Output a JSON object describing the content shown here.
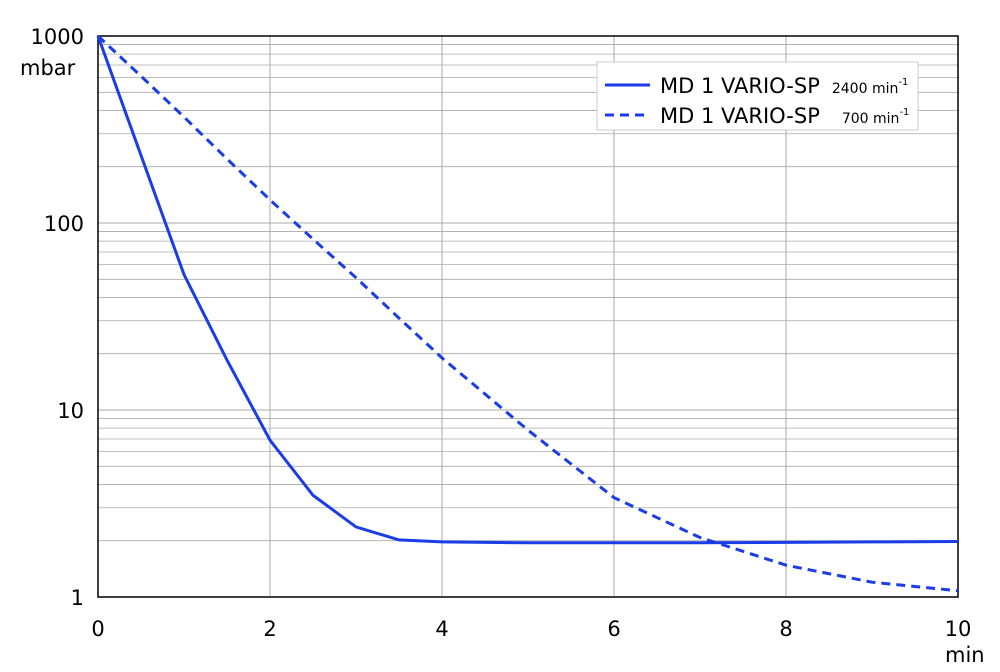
{
  "chart_data": {
    "type": "line",
    "y_label": "mbar",
    "x_label": "min",
    "x": [
      0,
      0.5,
      1,
      1.5,
      2,
      2.5,
      3,
      3.5,
      4,
      5,
      6,
      7,
      8,
      9,
      10
    ],
    "series": [
      {
        "name": "MD 1 VARIO-SP",
        "speed": "2400 min",
        "speed_exp": "-1",
        "color": "#1a3de8",
        "dashed": false,
        "values": [
          1000,
          230,
          53,
          18.5,
          6.9,
          3.5,
          2.37,
          2.02,
          1.97,
          1.95,
          1.95,
          1.95,
          1.96,
          1.97,
          1.98
        ]
      },
      {
        "name": "MD 1 VARIO-SP",
        "speed": "700 min",
        "speed_exp": "-1",
        "color": "#1a3de8",
        "dashed": true,
        "values": [
          1000,
          610,
          369,
          220,
          133,
          82,
          51,
          31,
          19,
          7.8,
          3.4,
          2.08,
          1.48,
          1.2,
          1.08
        ]
      }
    ],
    "xlim": [
      0,
      10
    ],
    "xticks": [
      0,
      2,
      4,
      6,
      8,
      10
    ],
    "ylim": [
      1,
      1000
    ],
    "yticks": [
      1,
      10,
      100,
      1000
    ],
    "log_y": true,
    "grid": true,
    "minor_grid": true,
    "legend": "upper right"
  }
}
